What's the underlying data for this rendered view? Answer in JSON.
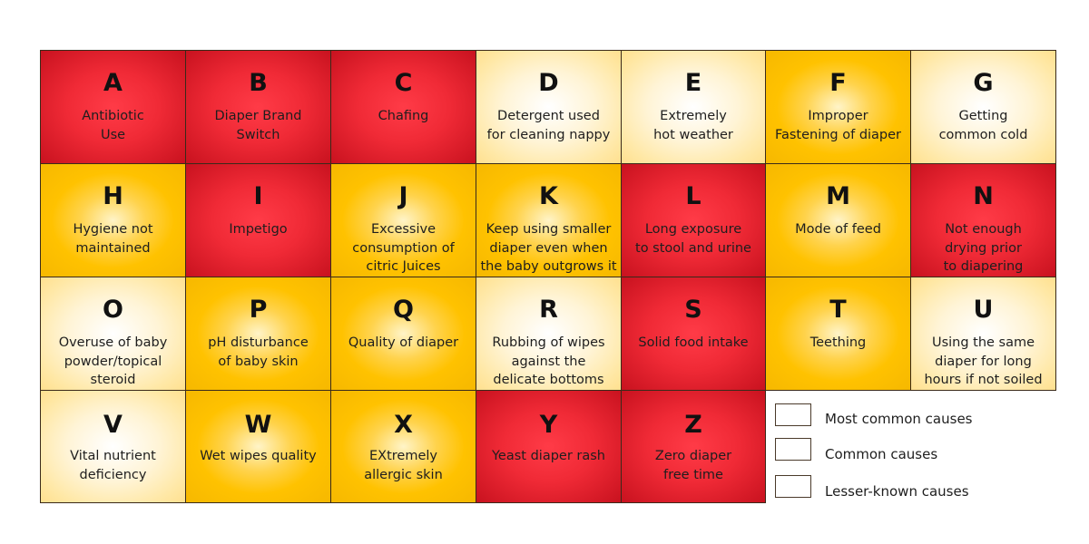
{
  "colors": {
    "most": "#ef2c37",
    "common": "#ffc200",
    "lesser": "#fff0c0",
    "border": "#3a2a1a"
  },
  "cells": [
    {
      "letter": "A",
      "desc": "Antibiotic\nUse",
      "category": "most"
    },
    {
      "letter": "B",
      "desc": "Diaper Brand\nSwitch",
      "category": "most"
    },
    {
      "letter": "C",
      "desc": "Chafing",
      "category": "most"
    },
    {
      "letter": "D",
      "desc": "Detergent used\nfor cleaning nappy",
      "category": "lesser"
    },
    {
      "letter": "E",
      "desc": "Extremely\nhot weather",
      "category": "lesser"
    },
    {
      "letter": "F",
      "desc": "Improper\nFastening of diaper",
      "category": "common"
    },
    {
      "letter": "G",
      "desc": "Getting\ncommon cold",
      "category": "lesser"
    },
    {
      "letter": "H",
      "desc": "Hygiene not\nmaintained",
      "category": "common"
    },
    {
      "letter": "I",
      "desc": "Impetigo",
      "category": "most"
    },
    {
      "letter": "J",
      "desc": "Excessive\nconsumption of\ncitric Juices",
      "category": "common"
    },
    {
      "letter": "K",
      "desc": "Keep using smaller\ndiaper even when\nthe baby outgrows it",
      "category": "common"
    },
    {
      "letter": "L",
      "desc": "Long exposure\nto stool and urine",
      "category": "most"
    },
    {
      "letter": "M",
      "desc": "Mode of feed",
      "category": "common"
    },
    {
      "letter": "N",
      "desc": "Not enough\ndrying prior\nto diapering",
      "category": "most"
    },
    {
      "letter": "O",
      "desc": "Overuse of baby\npowder/topical\nsteroid",
      "category": "lesser"
    },
    {
      "letter": "P",
      "desc": "pH disturbance\nof baby skin",
      "category": "common"
    },
    {
      "letter": "Q",
      "desc": "Quality of diaper",
      "category": "common"
    },
    {
      "letter": "R",
      "desc": "Rubbing of wipes\nagainst the\ndelicate bottoms",
      "category": "lesser"
    },
    {
      "letter": "S",
      "desc": "Solid food intake",
      "category": "most"
    },
    {
      "letter": "T",
      "desc": "Teething",
      "category": "common"
    },
    {
      "letter": "U",
      "desc": "Using the same\ndiaper for long\nhours if not soiled",
      "category": "lesser"
    },
    {
      "letter": "V",
      "desc": "Vital nutrient\ndeficiency",
      "category": "lesser"
    },
    {
      "letter": "W",
      "desc": "Wet wipes quality",
      "category": "common"
    },
    {
      "letter": "X",
      "desc": "EXtremely\nallergic skin",
      "category": "common"
    },
    {
      "letter": "Y",
      "desc": "Yeast diaper rash",
      "category": "most"
    },
    {
      "letter": "Z",
      "desc": "Zero diaper\nfree time",
      "category": "most"
    }
  ],
  "legend": [
    {
      "category": "most",
      "label": "Most common causes"
    },
    {
      "category": "common",
      "label": "Common causes"
    },
    {
      "category": "lesser",
      "label": "Lesser-known causes"
    }
  ]
}
